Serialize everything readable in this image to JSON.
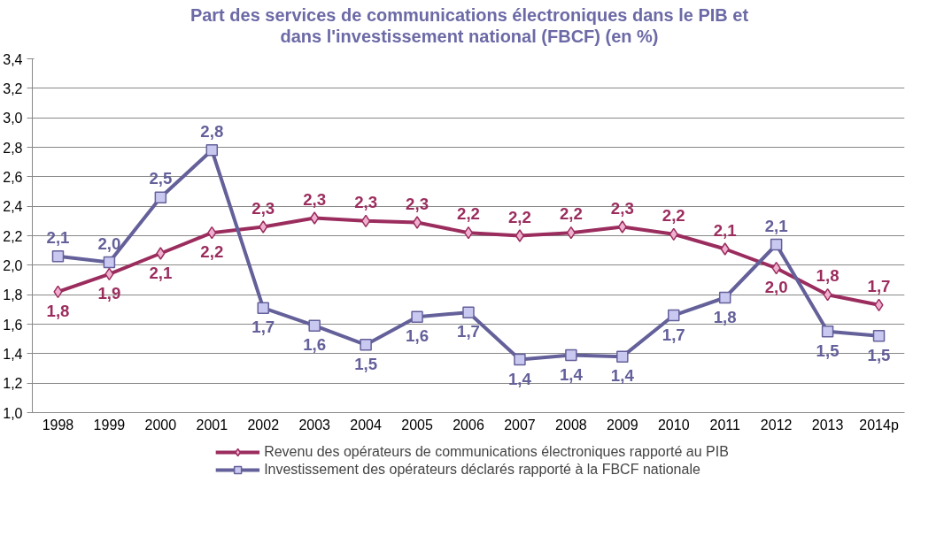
{
  "chart_data": {
    "type": "line",
    "title": "Part des services de communications électroniques dans le PIB et\ndans l'investissement national  (FBCF) (en %)",
    "categories": [
      "1998",
      "1999",
      "2000",
      "2001",
      "2002",
      "2003",
      "2004",
      "2005",
      "2006",
      "2007",
      "2008",
      "2009",
      "2010",
      "2011",
      "2012",
      "2013",
      "2014p"
    ],
    "series": [
      {
        "name": "Revenu des opérateurs de communications électroniques rapporté au PIB",
        "color": "#9b2d5e",
        "marker": "diamond",
        "values": [
          1.82,
          1.94,
          2.08,
          2.22,
          2.26,
          2.32,
          2.3,
          2.29,
          2.22,
          2.2,
          2.22,
          2.26,
          2.21,
          2.11,
          1.98,
          1.8,
          1.73
        ],
        "value_labels": [
          "1,8",
          "1,9",
          "2,1",
          "2,2",
          "2,3",
          "2,3",
          "2,3",
          "2,3",
          "2,2",
          "2,2",
          "2,2",
          "2,3",
          "2,2",
          "2,1",
          "2,0",
          "1,8",
          "1,7"
        ]
      },
      {
        "name": "Investissement des opérateurs déclarés rapporté à la FBCF nationale",
        "color": "#64609a",
        "marker": "square",
        "values": [
          2.06,
          2.02,
          2.46,
          2.78,
          1.71,
          1.59,
          1.46,
          1.65,
          1.68,
          1.36,
          1.39,
          1.38,
          1.66,
          1.78,
          2.14,
          1.55,
          1.52
        ],
        "value_labels": [
          "2,1",
          "2,0",
          "2,5",
          "2,8",
          "1,7",
          "1,6",
          "1,5",
          "1,6",
          "1,7",
          "1,4",
          "1,4",
          "1,4",
          "1,7",
          "1,8",
          "2,1",
          "1,5",
          "1,5"
        ]
      }
    ],
    "ylim": [
      1.0,
      3.4
    ],
    "yticks": [
      {
        "value": 1.0,
        "label": "1,0"
      },
      {
        "value": 1.2,
        "label": "1,2"
      },
      {
        "value": 1.4,
        "label": "1,4"
      },
      {
        "value": 1.6,
        "label": "1,6"
      },
      {
        "value": 1.8,
        "label": "1,8"
      },
      {
        "value": 2.0,
        "label": "2,0"
      },
      {
        "value": 2.2,
        "label": "2,2"
      },
      {
        "value": 2.4,
        "label": "2,4"
      },
      {
        "value": 2.6,
        "label": "2,6"
      },
      {
        "value": 2.8,
        "label": "2,8"
      },
      {
        "value": 3.0,
        "label": "3,0"
      },
      {
        "value": 3.2,
        "label": "3,2"
      },
      {
        "value": 3.4,
        "label": "3,4"
      }
    ],
    "grid": "y",
    "legend": "bottom",
    "line_style": "solid"
  }
}
